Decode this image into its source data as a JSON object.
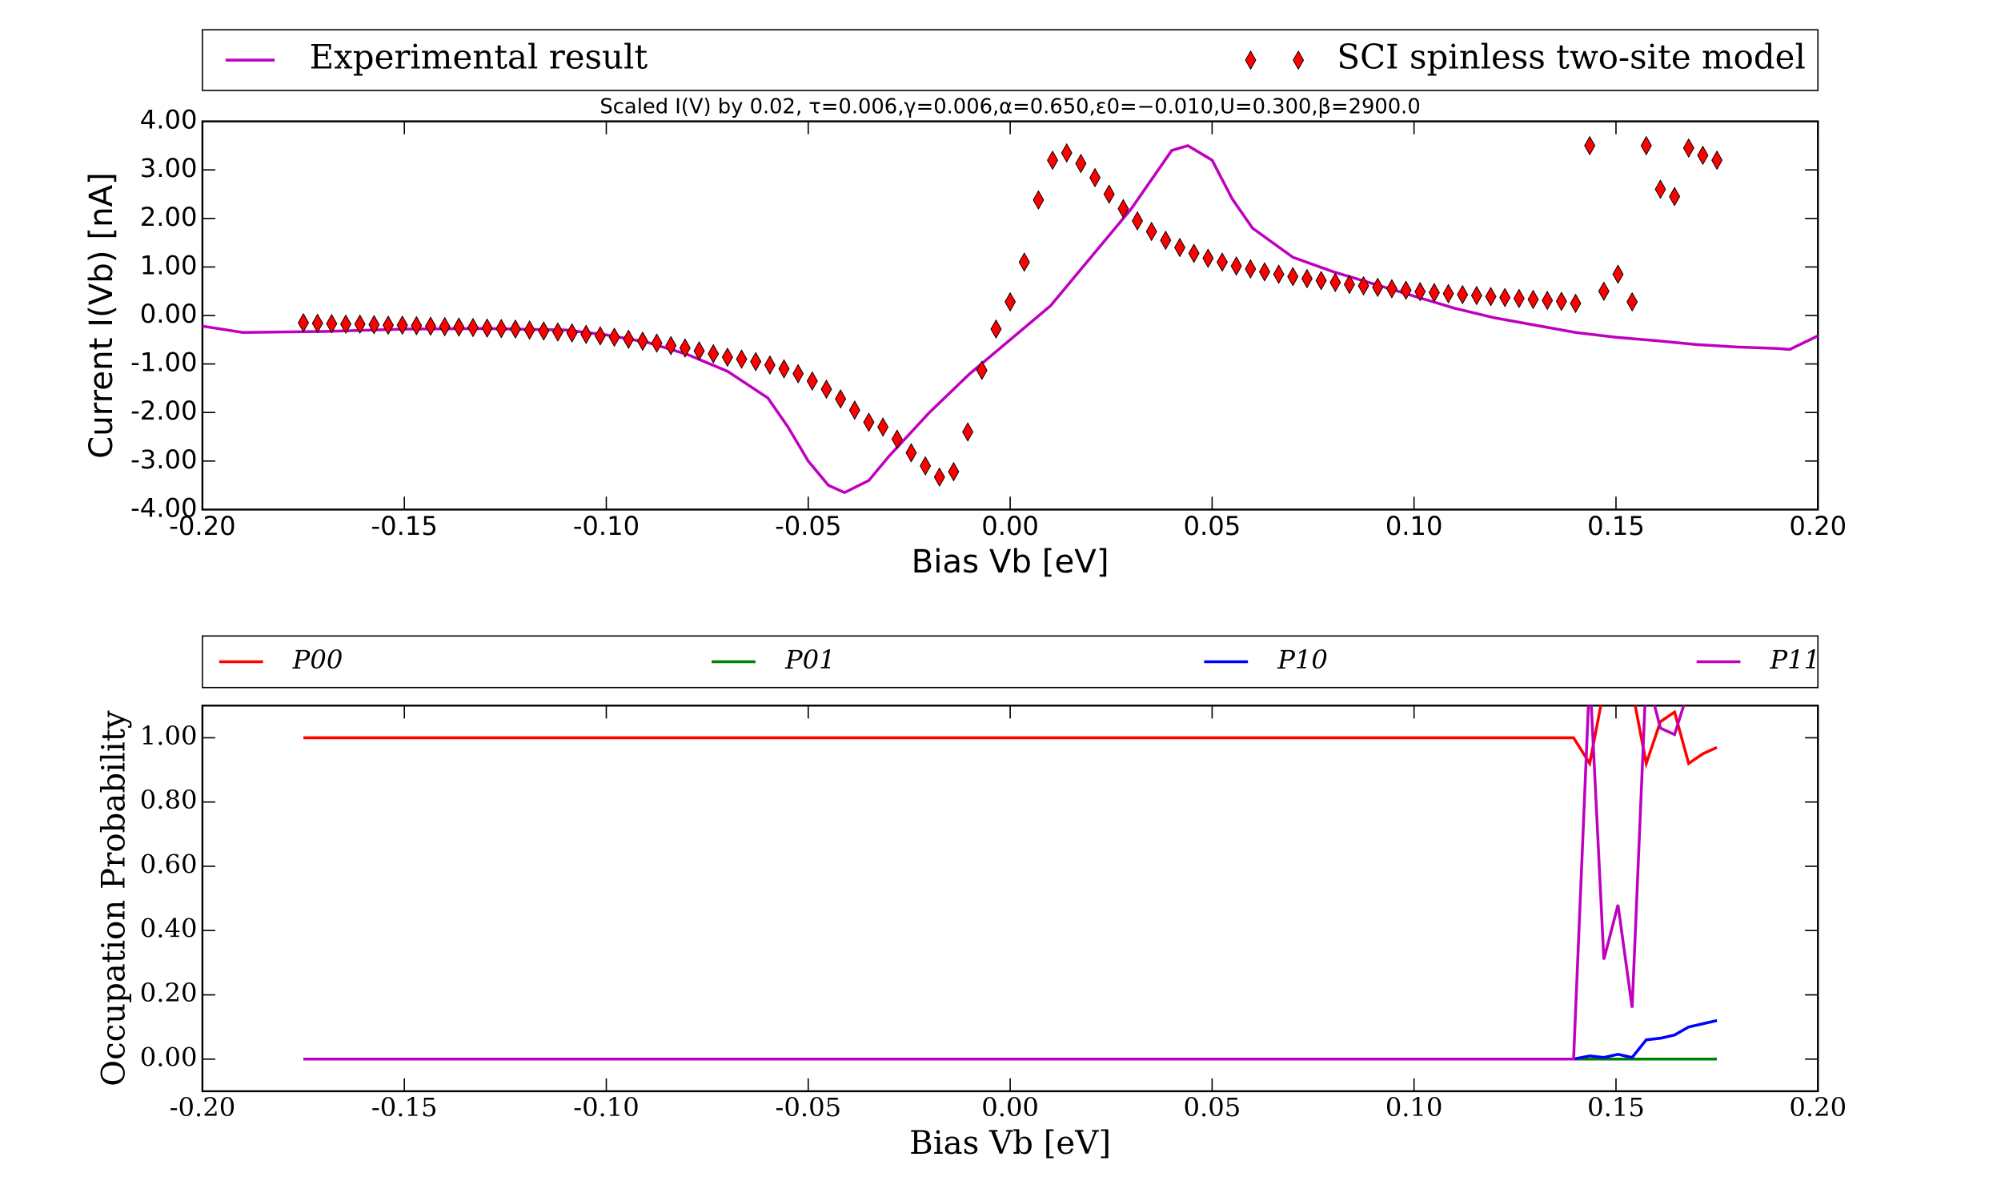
{
  "chart_data": [
    {
      "type": "line",
      "subtitle": "Scaled I(V) by 0.02, τ=0.006,γ=0.006,α=0.650,ε0=−0.010,U=0.300,β=2900.0",
      "x_label": "Bias Vb [eV]",
      "y_label": "Current I(Vb)  [nA]",
      "xlim": [
        -0.2,
        0.2
      ],
      "ylim": [
        -4,
        4
      ],
      "xticks": [
        {
          "value": -0.2,
          "label": "-0.20"
        },
        -0.15,
        {
          "value": -0.1,
          "label": "-0.10"
        },
        -0.05,
        {
          "value": 0,
          "label": "0.00"
        },
        0.05,
        {
          "value": 0.1,
          "label": "0.10"
        },
        0.15,
        {
          "value": 0.2,
          "label": "0.20"
        }
      ],
      "yticks": [
        {
          "value": -4,
          "label": "-4.00"
        },
        {
          "value": -3,
          "label": "-3.00"
        },
        {
          "value": -2,
          "label": "-2.00"
        },
        {
          "value": -1,
          "label": "-1.00"
        },
        {
          "value": 0,
          "label": "0.00"
        },
        {
          "value": 1,
          "label": "1.00"
        },
        {
          "value": 2,
          "label": "2.00"
        },
        {
          "value": 3,
          "label": "3.00"
        },
        {
          "value": 4,
          "label": "4.00"
        }
      ],
      "series": [
        {
          "name": "Experimental result",
          "type": "line",
          "color": "#bf00bf",
          "x": [
            -0.2,
            -0.19,
            -0.17,
            -0.15,
            -0.13,
            -0.11,
            -0.1,
            -0.09,
            -0.08,
            -0.07,
            -0.06,
            -0.055,
            -0.05,
            -0.045,
            -0.041,
            -0.035,
            -0.03,
            -0.02,
            -0.01,
            0,
            0.01,
            0.02,
            0.03,
            0.035,
            0.04,
            0.044,
            0.05,
            0.055,
            0.06,
            0.07,
            0.08,
            0.09,
            0.1,
            0.11,
            0.12,
            0.13,
            0.14,
            0.15,
            0.16,
            0.17,
            0.18,
            0.19,
            0.193,
            0.2
          ],
          "values": [
            -0.22,
            -0.35,
            -0.33,
            -0.28,
            -0.27,
            -0.3,
            -0.4,
            -0.55,
            -0.8,
            -1.15,
            -1.7,
            -2.3,
            -3.0,
            -3.5,
            -3.65,
            -3.4,
            -2.9,
            -2.0,
            -1.2,
            -0.5,
            0.2,
            1.2,
            2.2,
            2.8,
            3.4,
            3.5,
            3.2,
            2.4,
            1.8,
            1.2,
            0.9,
            0.65,
            0.4,
            0.15,
            -0.05,
            -0.2,
            -0.35,
            -0.45,
            -0.52,
            -0.6,
            -0.65,
            -0.68,
            -0.7,
            -0.42
          ]
        },
        {
          "name": "SCI spinless two-site model",
          "type": "scatter",
          "color": "#ff0000",
          "x": [
            -0.175,
            -0.1715,
            -0.168,
            -0.1645,
            -0.161,
            -0.1575,
            -0.154,
            -0.1505,
            -0.147,
            -0.1435,
            -0.14,
            -0.1365,
            -0.133,
            -0.1295,
            -0.126,
            -0.1225,
            -0.119,
            -0.1155,
            -0.112,
            -0.1085,
            -0.105,
            -0.1015,
            -0.098,
            -0.0945,
            -0.091,
            -0.0875,
            -0.084,
            -0.0805,
            -0.077,
            -0.0735,
            -0.07,
            -0.0665,
            -0.063,
            -0.0595,
            -0.056,
            -0.0525,
            -0.049,
            -0.0455,
            -0.042,
            -0.0385,
            -0.035,
            -0.0315,
            -0.028,
            -0.0245,
            -0.021,
            -0.0175,
            -0.014,
            -0.0105,
            -0.007,
            -0.0035,
            0,
            0.0035,
            0.007,
            0.0105,
            0.014,
            0.0175,
            0.021,
            0.0245,
            0.028,
            0.0315,
            0.035,
            0.0385,
            0.042,
            0.0455,
            0.049,
            0.0525,
            0.056,
            0.0595,
            0.063,
            0.0665,
            0.07,
            0.0735,
            0.077,
            0.0805,
            0.084,
            0.0875,
            0.091,
            0.0945,
            0.098,
            0.1015,
            0.105,
            0.1085,
            0.112,
            0.1155,
            0.119,
            0.1225,
            0.126,
            0.1295,
            0.133,
            0.1365,
            0.14,
            0.1435,
            0.147,
            0.1505,
            0.154,
            0.1575,
            0.161,
            0.1645,
            0.168,
            0.1715,
            0.175
          ],
          "values": [
            -0.15,
            -0.16,
            -0.17,
            -0.18,
            -0.18,
            -0.19,
            -0.2,
            -0.2,
            -0.21,
            -0.22,
            -0.23,
            -0.24,
            -0.25,
            -0.26,
            -0.27,
            -0.28,
            -0.3,
            -0.32,
            -0.34,
            -0.36,
            -0.39,
            -0.42,
            -0.45,
            -0.49,
            -0.53,
            -0.57,
            -0.62,
            -0.67,
            -0.73,
            -0.79,
            -0.86,
            -0.9,
            -0.95,
            -1.02,
            -1.1,
            -1.2,
            -1.35,
            -1.52,
            -1.72,
            -1.95,
            -2.2,
            -2.3,
            -2.55,
            -2.83,
            -3.1,
            -3.33,
            -3.22,
            -2.4,
            -1.13,
            -0.28,
            0.28,
            1.1,
            2.38,
            3.2,
            3.35,
            3.13,
            2.84,
            2.5,
            2.2,
            1.95,
            1.73,
            1.55,
            1.4,
            1.28,
            1.18,
            1.1,
            1.02,
            0.96,
            0.9,
            0.85,
            0.8,
            0.76,
            0.72,
            0.68,
            0.64,
            0.61,
            0.58,
            0.55,
            0.52,
            0.49,
            0.47,
            0.45,
            0.43,
            0.41,
            0.39,
            0.37,
            0.35,
            0.33,
            0.31,
            0.29,
            0.25,
            3.5,
            0.5,
            0.85,
            0.28,
            3.5,
            2.6,
            2.45,
            3.45,
            3.3,
            3.2
          ]
        }
      ]
    },
    {
      "type": "line",
      "x_label": "Bias Vb [eV]",
      "y_label": "Occupation Probability",
      "xlim": [
        -0.2,
        0.2
      ],
      "ylim": [
        -0.1,
        1.1
      ],
      "xticks": [
        {
          "value": -0.2,
          "label": "-0.20"
        },
        -0.15,
        {
          "value": -0.1,
          "label": "-0.10"
        },
        -0.05,
        {
          "value": 0,
          "label": "0.00"
        },
        0.05,
        {
          "value": 0.1,
          "label": "0.10"
        },
        0.15,
        {
          "value": 0.2,
          "label": "0.20"
        }
      ],
      "yticks": [
        {
          "value": 0,
          "label": "0.00"
        },
        {
          "value": 0.2,
          "label": "0.20"
        },
        {
          "value": 0.4,
          "label": "0.40"
        },
        {
          "value": 0.6,
          "label": "0.60"
        },
        {
          "value": 0.8,
          "label": "0.80"
        },
        {
          "value": 1,
          "label": "1.00"
        }
      ],
      "x": [
        -0.175,
        0.1395,
        0.1435,
        0.147,
        0.1505,
        0.154,
        0.1575,
        0.161,
        0.1645,
        0.168,
        0.1715,
        0.175
      ],
      "series": [
        {
          "name": "P00",
          "color": "#ff0000",
          "values": [
            1,
            1,
            0.92,
            1.15,
            1.15,
            1.15,
            0.92,
            1.05,
            1.08,
            0.92,
            0.95,
            0.97
          ]
        },
        {
          "name": "P01",
          "color": "#008000",
          "values": [
            0,
            0,
            0,
            0,
            0,
            0,
            0,
            0,
            0,
            0,
            0,
            0
          ]
        },
        {
          "name": "P10",
          "color": "#0000ff",
          "values": [
            0,
            0,
            0.01,
            0.005,
            0.015,
            0.005,
            0.06,
            0.065,
            0.075,
            0.1,
            0.11,
            0.12
          ]
        },
        {
          "name": "P11",
          "color": "#bf00bf",
          "values": [
            0,
            0,
            1.2,
            0.31,
            0.48,
            0.16,
            1.2,
            1.03,
            1.01,
            1.15,
            1.2,
            1.2
          ]
        }
      ]
    }
  ]
}
